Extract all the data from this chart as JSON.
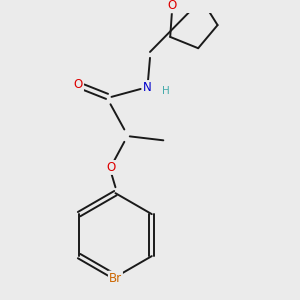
{
  "background_color": "#ebebeb",
  "bond_color": "#1a1a1a",
  "atom_colors": {
    "O": "#dd0000",
    "N": "#0000cc",
    "Br": "#cc6600",
    "H": "#44aaaa",
    "C": "#1a1a1a"
  },
  "figsize": [
    3.0,
    3.0
  ],
  "dpi": 100,
  "lw": 1.4,
  "fs": 8.5
}
